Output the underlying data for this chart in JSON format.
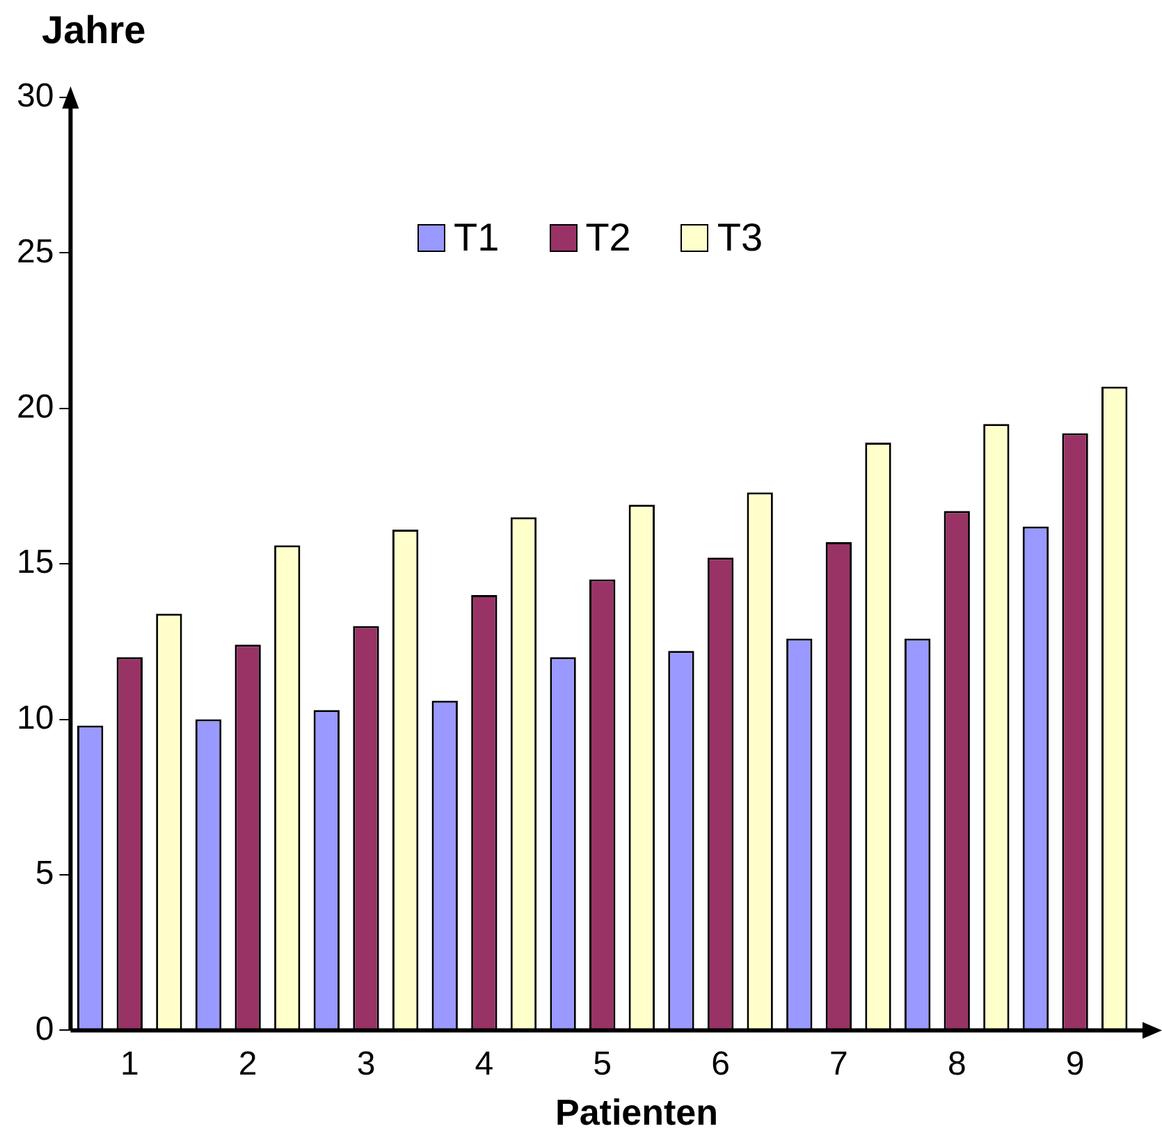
{
  "chart_data": {
    "type": "bar",
    "ylabel": "Jahre",
    "xlabel": "Patienten",
    "categories": [
      "1",
      "2",
      "3",
      "4",
      "5",
      "6",
      "7",
      "8",
      "9"
    ],
    "series": [
      {
        "name": "T1",
        "color": "#9999ff",
        "values": [
          9.8,
          10.0,
          10.3,
          10.6,
          12.0,
          12.2,
          12.6,
          12.6,
          16.2
        ]
      },
      {
        "name": "T2",
        "color": "#993366",
        "values": [
          12.0,
          12.4,
          13.0,
          14.0,
          14.5,
          15.2,
          15.7,
          16.7,
          19.2
        ]
      },
      {
        "name": "T3",
        "color": "#ffffcc",
        "values": [
          13.4,
          15.6,
          16.1,
          16.5,
          16.9,
          17.3,
          18.9,
          19.5,
          20.7
        ]
      }
    ],
    "ylim": [
      0,
      30
    ],
    "yticks": [
      0,
      5,
      10,
      15,
      20,
      25,
      30
    ],
    "grid": false,
    "legend": "top"
  }
}
